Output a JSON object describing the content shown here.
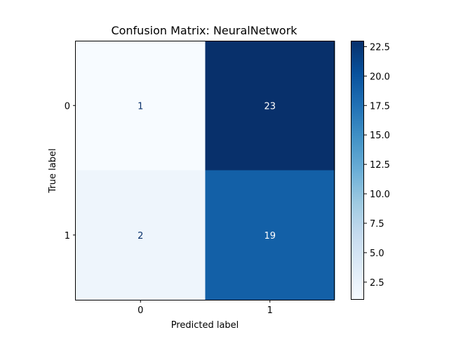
{
  "chart_data": {
    "type": "heatmap",
    "title": "Confusion Matrix: NeuralNetwork",
    "xlabel": "Predicted label",
    "ylabel": "True label",
    "x_categories": [
      "0",
      "1"
    ],
    "y_categories": [
      "0",
      "1"
    ],
    "matrix": [
      [
        1,
        23
      ],
      [
        2,
        19
      ]
    ],
    "colormap": "Blues",
    "colorbar": {
      "min": 1,
      "max": 23,
      "ticks": [
        2.5,
        5.0,
        7.5,
        10.0,
        12.5,
        15.0,
        17.5,
        20.0,
        22.5
      ],
      "tick_labels": [
        "2.5",
        "5.0",
        "7.5",
        "10.0",
        "12.5",
        "15.0",
        "17.5",
        "20.0",
        "22.5"
      ]
    },
    "grid": false,
    "text_colors": {
      "dark_bg": "#ffffff",
      "light_bg": "#08306b"
    }
  }
}
